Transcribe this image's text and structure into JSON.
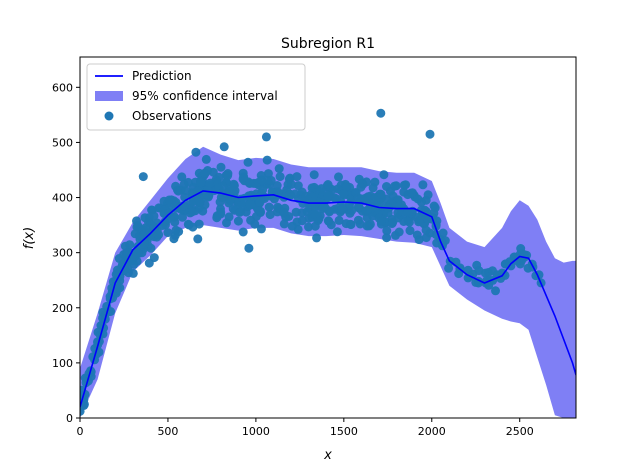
{
  "chart_data": {
    "type": "scatter",
    "title": "Subregion R1",
    "xlabel": "x",
    "ylabel": "f(x)",
    "xlim": [
      0,
      2820
    ],
    "ylim": [
      0,
      655
    ],
    "x_ticks": [
      0,
      500,
      1000,
      1500,
      2000,
      2500
    ],
    "y_ticks": [
      0,
      100,
      200,
      300,
      400,
      500,
      600
    ],
    "legend": {
      "position": "top-left",
      "entries": [
        "Prediction",
        "95% confidence interval",
        "Observations"
      ]
    },
    "colors": {
      "prediction": "#0000ff",
      "confidence_band": "#7f7ff5",
      "observations": "#1f77b4"
    },
    "prediction": {
      "x": [
        0,
        100,
        200,
        300,
        400,
        500,
        600,
        700,
        800,
        900,
        1000,
        1100,
        1200,
        1300,
        1400,
        1500,
        1600,
        1700,
        1800,
        1900,
        2000,
        2050,
        2100,
        2200,
        2300,
        2400,
        2450,
        2500,
        2550,
        2600,
        2700,
        2800,
        2820
      ],
      "y": [
        20,
        130,
        245,
        305,
        335,
        368,
        395,
        412,
        408,
        400,
        403,
        405,
        395,
        390,
        390,
        392,
        390,
        382,
        380,
        380,
        365,
        320,
        285,
        260,
        245,
        258,
        280,
        293,
        290,
        260,
        185,
        100,
        78
      ]
    },
    "confidence_interval": {
      "x": [
        0,
        100,
        200,
        300,
        400,
        500,
        600,
        700,
        800,
        900,
        1000,
        1100,
        1200,
        1300,
        1400,
        1500,
        1600,
        1700,
        1800,
        1900,
        2000,
        2050,
        2100,
        2200,
        2300,
        2400,
        2450,
        2500,
        2550,
        2600,
        2650,
        2700,
        2750,
        2800,
        2820
      ],
      "lower": [
        0,
        70,
        190,
        265,
        295,
        330,
        345,
        350,
        345,
        340,
        345,
        345,
        335,
        330,
        330,
        332,
        330,
        325,
        320,
        318,
        310,
        275,
        240,
        215,
        195,
        180,
        175,
        172,
        160,
        110,
        60,
        5,
        0,
        0,
        0
      ],
      "upper": [
        90,
        190,
        300,
        355,
        395,
        435,
        470,
        492,
        478,
        468,
        472,
        470,
        460,
        455,
        455,
        455,
        455,
        448,
        445,
        445,
        430,
        390,
        345,
        320,
        310,
        345,
        375,
        395,
        385,
        360,
        320,
        290,
        282,
        285,
        285
      ]
    },
    "observations_summary": {
      "count": 700,
      "x_range": [
        0,
        2630
      ],
      "notable_outliers": [
        [
          1710,
          553
        ],
        [
          1060,
          510
        ],
        [
          1990,
          515
        ],
        [
          820,
          492
        ],
        [
          960,
          308
        ],
        [
          670,
          325
        ],
        [
          360,
          438
        ]
      ]
    }
  }
}
